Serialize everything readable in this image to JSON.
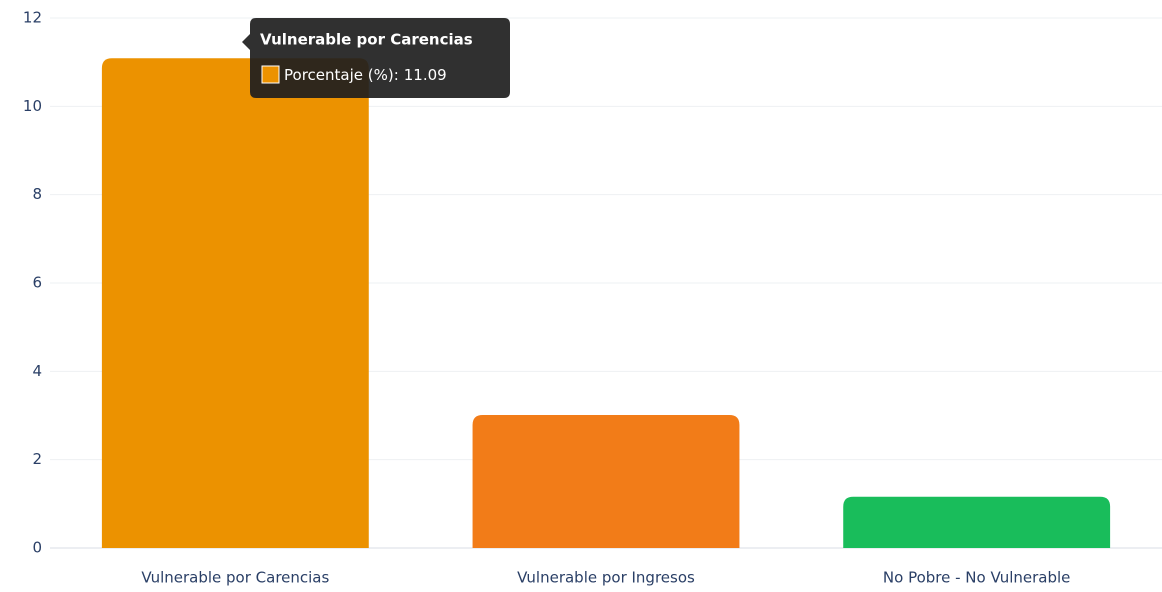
{
  "chart_data": {
    "type": "bar",
    "categories": [
      "Vulnerable por Carencias",
      "Vulnerable por Ingresos",
      "No Pobre - No Vulnerable"
    ],
    "series": [
      {
        "name": "Porcentaje (%)",
        "colors": [
          "#ec9200",
          "#f27c18",
          "#19bd5b"
        ],
        "values": [
          11.09,
          3.01,
          1.16
        ]
      }
    ],
    "ylim": [
      0,
      12
    ],
    "yticks": [
      0,
      2,
      4,
      6,
      8,
      10,
      12
    ],
    "grid": true,
    "tooltip": {
      "label": "Porcentaje (%):"
    }
  }
}
